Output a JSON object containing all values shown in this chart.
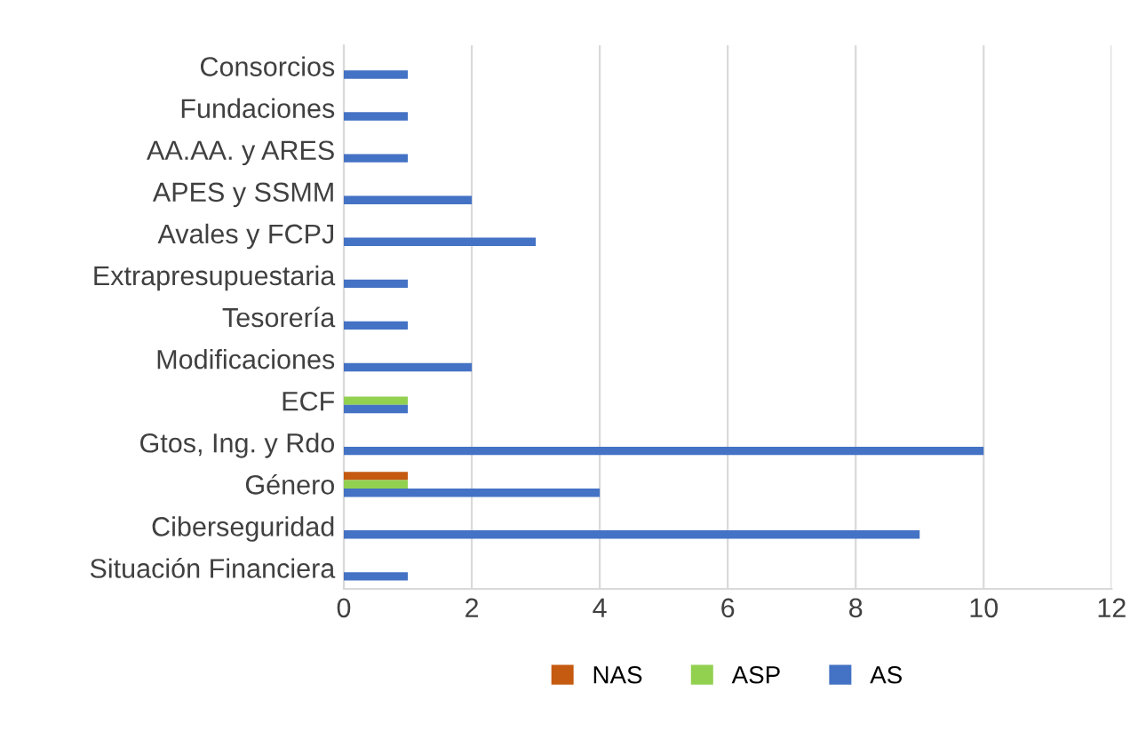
{
  "chart_data": {
    "type": "bar",
    "orientation": "horizontal",
    "categories": [
      "Consorcios",
      "Fundaciones",
      "AA.AA. y ARES",
      "APES y SSMM",
      "Avales y FCPJ",
      "Extrapresupuestaria",
      "Tesorería",
      "Modificaciones",
      "ECF",
      "Gtos, Ing. y Rdo",
      "Género",
      "Ciberseguridad",
      "Situación Financiera"
    ],
    "series": [
      {
        "name": "NAS",
        "color": "#c55a11",
        "values": [
          null,
          null,
          null,
          null,
          null,
          null,
          null,
          null,
          null,
          null,
          1,
          null,
          null
        ]
      },
      {
        "name": "ASP",
        "color": "#92d050",
        "values": [
          null,
          null,
          null,
          null,
          null,
          null,
          null,
          null,
          1,
          null,
          1,
          null,
          null
        ]
      },
      {
        "name": "AS",
        "color": "#4472c4",
        "values": [
          1,
          1,
          1,
          2,
          3,
          1,
          1,
          2,
          1,
          10,
          4,
          9,
          1
        ]
      }
    ],
    "xlim": [
      0,
      12
    ],
    "xticks": [
      0,
      2,
      4,
      6,
      8,
      10,
      12
    ],
    "grid": "x",
    "legend": "bottom"
  }
}
